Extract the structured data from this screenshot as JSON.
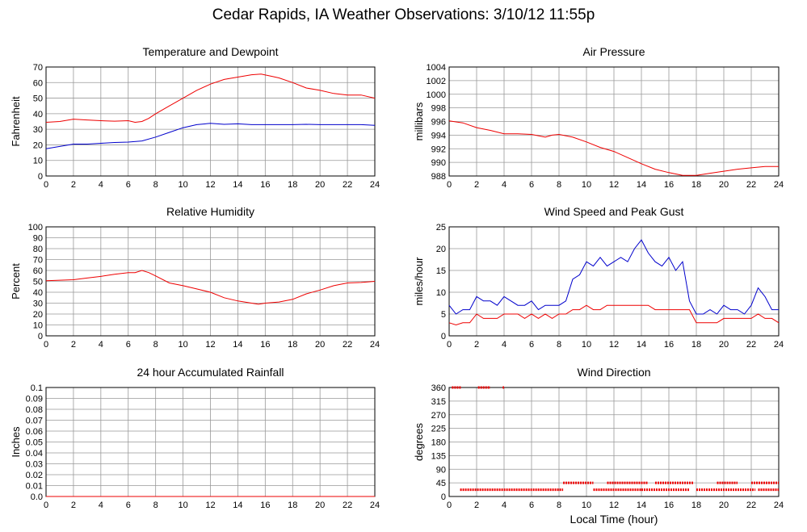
{
  "page": {
    "title": "Cedar Rapids, IA Weather Observations: 3/10/12 11:55p",
    "x_axis_label": "Local Time (hour)"
  },
  "colors": {
    "series_red": "#ee0000",
    "series_blue": "#0000cc",
    "grid": "#999999"
  },
  "chart_data": [
    {
      "id": "temp",
      "type": "line",
      "title": "Temperature and Dewpoint",
      "ylabel": "Fahrenheit",
      "xlim": [
        0,
        24
      ],
      "ylim": [
        0,
        70
      ],
      "xticks": [
        0,
        2,
        4,
        6,
        8,
        10,
        12,
        14,
        16,
        18,
        20,
        22,
        24
      ],
      "yticks": [
        0,
        10,
        20,
        30,
        40,
        50,
        60,
        70
      ],
      "ytick_labels": [
        "0",
        "10",
        "20",
        "30",
        "40",
        "50",
        "60",
        "70"
      ],
      "grid": true,
      "series": [
        {
          "color": "#ee0000",
          "x": [
            0,
            1,
            2,
            3,
            4,
            5,
            6,
            6.5,
            7,
            7.5,
            8,
            9,
            10,
            11,
            12,
            13,
            14,
            15,
            15.7,
            16.5,
            17,
            18,
            19,
            20,
            21,
            22,
            23,
            24
          ],
          "y": [
            34.5,
            35,
            36.5,
            36,
            35.5,
            35.2,
            35.5,
            34.5,
            35,
            37,
            40,
            45,
            50,
            55,
            59,
            62,
            63.5,
            65,
            65.5,
            64,
            63,
            60,
            56.5,
            55,
            53,
            52,
            52,
            50
          ]
        },
        {
          "color": "#0000cc",
          "x": [
            0,
            1,
            2,
            3,
            4,
            5,
            6,
            7,
            8,
            9,
            10,
            11,
            12,
            13,
            14,
            15,
            16,
            17,
            18,
            19,
            20,
            21,
            22,
            23,
            24
          ],
          "y": [
            17.5,
            19,
            20.5,
            20.5,
            21,
            21.5,
            21.8,
            22.5,
            25,
            28,
            31,
            33,
            33.8,
            33.2,
            33.5,
            33,
            33,
            33,
            33,
            33.2,
            33,
            33,
            33,
            33,
            32.5
          ]
        }
      ]
    },
    {
      "id": "pressure",
      "type": "line",
      "title": "Air Pressure",
      "ylabel": "millibars",
      "xlim": [
        0,
        24
      ],
      "ylim": [
        988,
        1004
      ],
      "xticks": [
        0,
        2,
        4,
        6,
        8,
        10,
        12,
        14,
        16,
        18,
        20,
        22,
        24
      ],
      "yticks": [
        988,
        990,
        992,
        994,
        996,
        998,
        1000,
        1002,
        1004
      ],
      "ytick_labels": [
        "988",
        "990",
        "992",
        "994",
        "996",
        "998",
        "1000",
        "1002",
        "1004"
      ],
      "grid": true,
      "series": [
        {
          "color": "#ee0000",
          "x": [
            0,
            1,
            2,
            3,
            4,
            5,
            6,
            7,
            7.5,
            8,
            9,
            10,
            11,
            12,
            13,
            14,
            15,
            16,
            17,
            17.5,
            18,
            19,
            20,
            21,
            22,
            23,
            24
          ],
          "y": [
            996.1,
            995.8,
            995.1,
            994.7,
            994.2,
            994.2,
            994.1,
            993.7,
            994,
            994.1,
            993.7,
            993,
            992.2,
            991.6,
            990.7,
            989.8,
            989,
            988.5,
            988.1,
            988.1,
            988.1,
            988.4,
            988.7,
            989,
            989.2,
            989.4,
            989.4
          ]
        }
      ]
    },
    {
      "id": "rh",
      "type": "line",
      "title": "Relative Humidity",
      "ylabel": "Percent",
      "xlim": [
        0,
        24
      ],
      "ylim": [
        0,
        100
      ],
      "xticks": [
        0,
        2,
        4,
        6,
        8,
        10,
        12,
        14,
        16,
        18,
        20,
        22,
        24
      ],
      "yticks": [
        0,
        10,
        20,
        30,
        40,
        50,
        60,
        70,
        80,
        90,
        100
      ],
      "ytick_labels": [
        "0",
        "10",
        "20",
        "30",
        "40",
        "50",
        "60",
        "70",
        "80",
        "90",
        "100"
      ],
      "grid": true,
      "series": [
        {
          "color": "#ee0000",
          "x": [
            0,
            1,
            2,
            3,
            4,
            5,
            6,
            6.5,
            7,
            7.5,
            8,
            9,
            10,
            11,
            12,
            13,
            14,
            15,
            15.5,
            16,
            17,
            18,
            19,
            20,
            21,
            22,
            23,
            24
          ],
          "y": [
            50.5,
            51,
            51.5,
            53,
            54.5,
            56.5,
            58,
            58,
            60,
            58,
            55,
            48.5,
            46,
            43,
            40,
            35,
            32,
            30,
            29,
            30,
            31,
            33.5,
            38.5,
            42,
            46,
            48.5,
            49,
            50
          ]
        }
      ]
    },
    {
      "id": "wind",
      "type": "line",
      "title": "Wind Speed and Peak Gust",
      "ylabel": "miles/hour",
      "xlim": [
        0,
        24
      ],
      "ylim": [
        0,
        25
      ],
      "xticks": [
        0,
        2,
        4,
        6,
        8,
        10,
        12,
        14,
        16,
        18,
        20,
        22,
        24
      ],
      "yticks": [
        0,
        5,
        10,
        15,
        20,
        25
      ],
      "ytick_labels": [
        "0",
        "5",
        "10",
        "15",
        "20",
        "25"
      ],
      "grid": true,
      "series": [
        {
          "color": "#0000cc",
          "x": [
            0,
            0.5,
            1,
            1.5,
            2,
            2.5,
            3,
            3.5,
            4,
            4.5,
            5,
            5.5,
            6,
            6.5,
            7,
            7.5,
            8,
            8.5,
            9,
            9.5,
            10,
            10.5,
            11,
            11.5,
            12,
            12.5,
            13,
            13.5,
            14,
            14.5,
            15,
            15.5,
            16,
            16.5,
            17,
            17.5,
            18,
            18.5,
            19,
            19.5,
            20,
            20.5,
            21,
            21.5,
            22,
            22.5,
            23,
            23.5,
            24
          ],
          "y": [
            7,
            5,
            6,
            6,
            9,
            8,
            8,
            7,
            9,
            8,
            7,
            7,
            8,
            6,
            7,
            7,
            7,
            8,
            13,
            14,
            17,
            16,
            18,
            16,
            17,
            18,
            17,
            20,
            22,
            19,
            17,
            16,
            18,
            15,
            17,
            8,
            5,
            5,
            6,
            5,
            7,
            6,
            6,
            5,
            7,
            11,
            9,
            6,
            6
          ]
        },
        {
          "color": "#ee0000",
          "x": [
            0,
            0.5,
            1,
            1.5,
            2,
            2.5,
            3,
            3.5,
            4,
            4.5,
            5,
            5.5,
            6,
            6.5,
            7,
            7.5,
            8,
            8.5,
            9,
            9.5,
            10,
            10.5,
            11,
            11.5,
            12,
            12.5,
            13,
            13.5,
            14,
            14.5,
            15,
            15.5,
            16,
            16.5,
            17,
            17.5,
            18,
            18.5,
            19,
            19.5,
            20,
            20.5,
            21,
            21.5,
            22,
            22.5,
            23,
            23.5,
            24
          ],
          "y": [
            3,
            2.5,
            3,
            3,
            5,
            4,
            4,
            4,
            5,
            5,
            5,
            4,
            5,
            4,
            5,
            4,
            5,
            5,
            6,
            6,
            7,
            6,
            6,
            7,
            7,
            7,
            7,
            7,
            7,
            7,
            6,
            6,
            6,
            6,
            6,
            6,
            3,
            3,
            3,
            3,
            4,
            4,
            4,
            4,
            4,
            5,
            4,
            4,
            3
          ]
        }
      ]
    },
    {
      "id": "rain",
      "type": "line",
      "title": "24 hour Accumulated Rainfall",
      "ylabel": "Inches",
      "xlim": [
        0,
        24
      ],
      "ylim": [
        0,
        0.1
      ],
      "xticks": [
        0,
        2,
        4,
        6,
        8,
        10,
        12,
        14,
        16,
        18,
        20,
        22,
        24
      ],
      "yticks": [
        0,
        0.01,
        0.02,
        0.03,
        0.04,
        0.05,
        0.06,
        0.07,
        0.08,
        0.09,
        0.1
      ],
      "ytick_labels": [
        "0.0",
        "0.01",
        "0.02",
        "0.03",
        "0.04",
        "0.05",
        "0.06",
        "0.07",
        "0.08",
        "0.09",
        "0.1"
      ],
      "grid": true,
      "series": [
        {
          "color": "#ee0000",
          "x": [
            0,
            24
          ],
          "y": [
            0,
            0
          ]
        }
      ]
    },
    {
      "id": "winddir",
      "type": "scatter",
      "title": "Wind Direction",
      "ylabel": "degrees",
      "xlim": [
        0,
        24
      ],
      "ylim": [
        0,
        360
      ],
      "xticks": [
        0,
        2,
        4,
        6,
        8,
        10,
        12,
        14,
        16,
        18,
        20,
        22,
        24
      ],
      "yticks": [
        0,
        45,
        90,
        135,
        180,
        225,
        270,
        315,
        360
      ],
      "ytick_labels": [
        "0",
        "45",
        "90",
        "135",
        "180",
        "225",
        "270",
        "315",
        "360"
      ],
      "grid": true,
      "series": [
        {
          "color": "#ee0000",
          "segments": [
            {
              "x0": 0.2,
              "x1": 0.9,
              "y": 360
            },
            {
              "x0": 2.1,
              "x1": 3.0,
              "y": 360
            },
            {
              "x0": 3.9,
              "x1": 4.0,
              "y": 360
            },
            {
              "x0": 0.8,
              "x1": 8.3,
              "y": 22.5
            },
            {
              "x0": 8.3,
              "x1": 10.5,
              "y": 45
            },
            {
              "x0": 10.5,
              "x1": 14.0,
              "y": 22.5
            },
            {
              "x0": 11.5,
              "x1": 14.5,
              "y": 45
            },
            {
              "x0": 14.0,
              "x1": 17.5,
              "y": 22.5
            },
            {
              "x0": 15.0,
              "x1": 17.8,
              "y": 45
            },
            {
              "x0": 18.0,
              "x1": 22.3,
              "y": 22.5
            },
            {
              "x0": 19.5,
              "x1": 21.0,
              "y": 45
            },
            {
              "x0": 22.0,
              "x1": 24.0,
              "y": 45
            },
            {
              "x0": 22.5,
              "x1": 24.0,
              "y": 22.5
            }
          ]
        }
      ]
    }
  ]
}
